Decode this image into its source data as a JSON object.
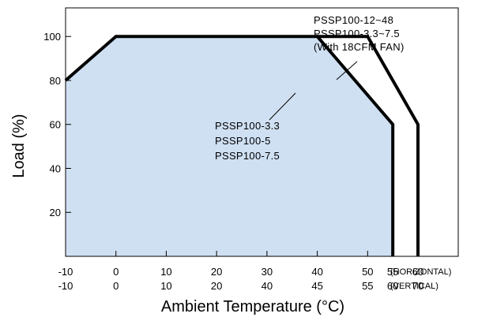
{
  "chart_data": {
    "type": "line",
    "xlabel": "Ambient Temperature (°C)",
    "ylabel": "Load (%)",
    "ylim": [
      0,
      113
    ],
    "xlim": [
      -10,
      68
    ],
    "grid": false,
    "y_ticks": [
      20,
      40,
      60,
      80,
      100
    ],
    "x_ticks_horizontal": {
      "label": "(HORIZONTAL)",
      "positions": [
        -10,
        0,
        10,
        20,
        30,
        40,
        50,
        55,
        60
      ],
      "labels": [
        "-10",
        "0",
        "10",
        "20",
        "30",
        "40",
        "50",
        "55",
        "60"
      ]
    },
    "x_ticks_vertical": {
      "label": "(VERTICAL)",
      "labels": [
        "-10",
        "0",
        "10",
        "20",
        "40",
        "45",
        "55",
        "60",
        "70"
      ]
    },
    "series": [
      {
        "name": "PSSP100-3.3 PSSP100-5 PSSP100-7.5",
        "x": [
          -10,
          0,
          40,
          55,
          55
        ],
        "y": [
          80,
          100,
          100,
          60,
          0
        ]
      },
      {
        "name": "PSSP100-12~48 PSSP100-3.3~7.5 (With 18CFM FAN)",
        "x": [
          40,
          50,
          60,
          60
        ],
        "y": [
          100,
          100,
          60,
          0
        ]
      }
    ],
    "annotations": [
      {
        "target": "series-1",
        "lines": [
          "PSSP100-12~48",
          "PSSP100-3.3~7.5",
          "(With 18CFM FAN)"
        ]
      },
      {
        "target": "series-0",
        "lines": [
          "PSSP100-3.3",
          "PSSP100-5",
          "PSSP100-7.5"
        ]
      }
    ],
    "colors": {
      "fill": "#cfe0f3",
      "line": "#000000"
    }
  }
}
